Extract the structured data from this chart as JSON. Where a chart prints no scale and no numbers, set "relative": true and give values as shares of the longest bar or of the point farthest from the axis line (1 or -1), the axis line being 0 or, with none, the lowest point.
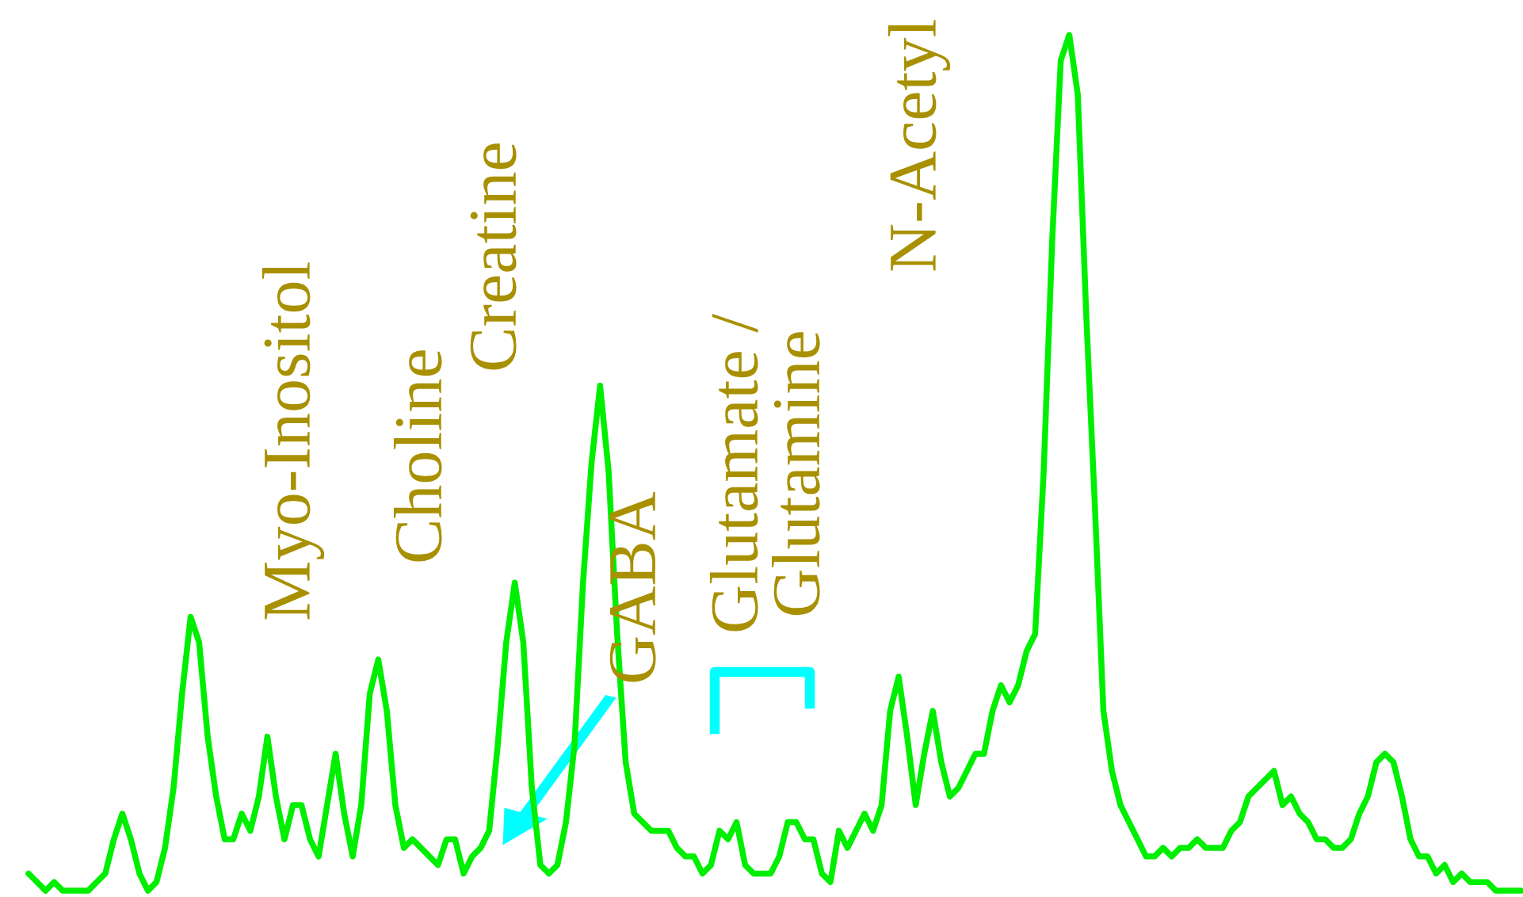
{
  "chart_data": {
    "type": "line",
    "relative": true,
    "line_style": "solid",
    "marker": "none",
    "legend": false,
    "categories": [
      null,
      null,
      null,
      null,
      null,
      null,
      null,
      null,
      null,
      null,
      null,
      null,
      null,
      null,
      null,
      null,
      null,
      null,
      null,
      null,
      null,
      null,
      null,
      null,
      null,
      null,
      null,
      null,
      null,
      null,
      null,
      null,
      null,
      null,
      null,
      null,
      null,
      null,
      null,
      null,
      null,
      null,
      null,
      null,
      null,
      null,
      null,
      null,
      null,
      null,
      null,
      null,
      null,
      null,
      null,
      null,
      null,
      null,
      null,
      null,
      null,
      null,
      null,
      null,
      null,
      null,
      null,
      null,
      null,
      null,
      null,
      null,
      null,
      null,
      null,
      null,
      null,
      null,
      null,
      null,
      null,
      null,
      null,
      null,
      null,
      null,
      null,
      null,
      null,
      null,
      null,
      null,
      null,
      null,
      null,
      null,
      null,
      null,
      null,
      null,
      null,
      null,
      null,
      null,
      null,
      null,
      null,
      null,
      null,
      null,
      null,
      null,
      null,
      null,
      null,
      null,
      null,
      null,
      null,
      null,
      null,
      null,
      null,
      null,
      null,
      null,
      null,
      null,
      null,
      null,
      null,
      null,
      null,
      null,
      null,
      null,
      null,
      null,
      null,
      null,
      null,
      null,
      null,
      null,
      null,
      null,
      null,
      null,
      null,
      null,
      null,
      null,
      null,
      null,
      null,
      null,
      null,
      null,
      null,
      null,
      null,
      null,
      null,
      null,
      null,
      null,
      null,
      null,
      null,
      null,
      null,
      null,
      null,
      null,
      null,
      null
    ],
    "series": [
      {
        "color": "#00ee00",
        "values": [
          0.02,
          0.01,
          0,
          0.01,
          0,
          0,
          0,
          0,
          0.01,
          0.02,
          0.06,
          0.09,
          0.06,
          0.02,
          0,
          0.01,
          0.05,
          0.12,
          0.23,
          0.32,
          0.29,
          0.18,
          0.11,
          0.06,
          0.06,
          0.09,
          0.07,
          0.11,
          0.18,
          0.11,
          0.06,
          0.1,
          0.1,
          0.06,
          0.04,
          0.1,
          0.16,
          0.09,
          0.04,
          0.1,
          0.23,
          0.27,
          0.21,
          0.1,
          0.05,
          0.06,
          0.05,
          0.04,
          0.03,
          0.06,
          0.06,
          0.02,
          0.04,
          0.05,
          0.07,
          0.17,
          0.29,
          0.36,
          0.29,
          0.12,
          0.03,
          0.02,
          0.03,
          0.08,
          0.17,
          0.36,
          0.5,
          0.59,
          0.49,
          0.3,
          0.15,
          0.09,
          0.08,
          0.07,
          0.07,
          0.07,
          0.05,
          0.04,
          0.04,
          0.02,
          0.03,
          0.07,
          0.06,
          0.08,
          0.03,
          0.02,
          0.02,
          0.02,
          0.04,
          0.08,
          0.08,
          0.06,
          0.06,
          0.02,
          0.01,
          0.07,
          0.05,
          0.07,
          0.09,
          0.07,
          0.1,
          0.21,
          0.25,
          0.18,
          0.1,
          0.16,
          0.21,
          0.15,
          0.11,
          0.12,
          0.14,
          0.16,
          0.16,
          0.21,
          0.24,
          0.22,
          0.24,
          0.28,
          0.3,
          0.49,
          0.76,
          0.97,
          1,
          0.93,
          0.67,
          0.45,
          0.21,
          0.14,
          0.1,
          0.08,
          0.06,
          0.04,
          0.04,
          0.05,
          0.04,
          0.05,
          0.05,
          0.06,
          0.05,
          0.05,
          0.05,
          0.07,
          0.08,
          0.11,
          0.12,
          0.13,
          0.14,
          0.1,
          0.11,
          0.09,
          0.08,
          0.06,
          0.06,
          0.05,
          0.05,
          0.06,
          0.09,
          0.11,
          0.15,
          0.16,
          0.15,
          0.11,
          0.06,
          0.04,
          0.04,
          0.02,
          0.03,
          0.01,
          0.02,
          0.01,
          0.01,
          0.01,
          0,
          0,
          0,
          0
        ]
      }
    ],
    "annotations": [
      "Myo-Inositol",
      "Choline",
      "Creatine",
      "GABA",
      "Glutamate /\nGlutamine",
      "N-Acetyl"
    ]
  }
}
